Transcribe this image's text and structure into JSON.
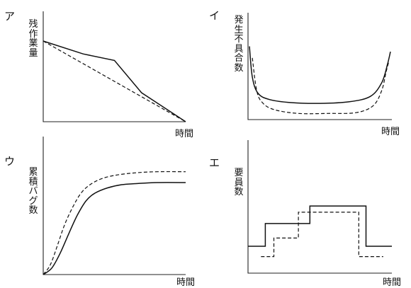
{
  "chart_data": [
    {
      "letter": "ア",
      "type": "line",
      "ylabel": "残作業量",
      "xlabel": "時間",
      "xlim": [
        0,
        10
      ],
      "ylim": [
        0,
        10
      ],
      "grid": false,
      "series": [
        {
          "style": "solid",
          "x": [
            0,
            2.8,
            5,
            6.9,
            10
          ],
          "y": [
            10,
            8.4,
            7.6,
            3.6,
            0
          ]
        },
        {
          "style": "dashed",
          "x": [
            0,
            10
          ],
          "y": [
            10,
            0
          ]
        }
      ]
    },
    {
      "letter": "イ",
      "type": "line",
      "ylabel": "発生不具合数",
      "xlabel": "時間",
      "xlim": [
        0,
        10
      ],
      "ylim": [
        0,
        10
      ],
      "grid": false,
      "series": [
        {
          "style": "solid",
          "x": [
            0.1,
            0.3,
            0.7,
            1.5,
            3,
            5,
            7,
            8.5,
            9.3,
            9.7,
            9.9
          ],
          "y": [
            9.5,
            5.5,
            3.4,
            2.6,
            2.2,
            2.1,
            2.3,
            3.0,
            4.8,
            7.2,
            8.8
          ]
        },
        {
          "style": "dashed",
          "x": [
            0.3,
            0.6,
            1,
            1.8,
            3.5,
            5.5,
            7.5,
            8.7,
            9.3,
            9.6,
            9.8
          ],
          "y": [
            8.0,
            3.8,
            2.2,
            1.3,
            0.8,
            0.8,
            0.9,
            1.8,
            3.8,
            6.2,
            7.6
          ]
        }
      ]
    },
    {
      "letter": "ウ",
      "type": "line",
      "ylabel": "累積バグ数",
      "xlabel": "時間",
      "xlim": [
        0,
        10
      ],
      "ylim": [
        0,
        10
      ],
      "grid": false,
      "series": [
        {
          "style": "solid",
          "x": [
            0,
            0.6,
            1.2,
            1.8,
            2.4,
            3.0,
            3.6,
            4.5,
            5.5,
            6.5,
            8,
            10
          ],
          "y": [
            0,
            0.6,
            2.0,
            3.8,
            5.5,
            6.8,
            7.5,
            8.0,
            8.3,
            8.4,
            8.5,
            8.5
          ]
        },
        {
          "style": "dashed",
          "x": [
            0,
            0.5,
            1.0,
            1.5,
            2.1,
            2.7,
            3.4,
            4.2,
            5.2,
            6.5,
            8,
            10
          ],
          "y": [
            0,
            0.9,
            2.7,
            4.6,
            6.3,
            7.6,
            8.4,
            8.9,
            9.2,
            9.4,
            9.5,
            9.5
          ]
        }
      ]
    },
    {
      "letter": "エ",
      "type": "line",
      "ylabel": "要員数",
      "xlabel": "時間",
      "xlim": [
        0,
        10
      ],
      "ylim": [
        0,
        10
      ],
      "grid": false,
      "series": [
        {
          "style": "solid",
          "x": [
            0,
            1.2,
            1.2,
            4.3,
            4.3,
            8.2,
            8.2,
            10
          ],
          "y": [
            2.6,
            2.6,
            4.8,
            4.8,
            6.5,
            6.5,
            2.6,
            2.6
          ]
        },
        {
          "style": "dashed",
          "x": [
            0.9,
            1.8,
            1.8,
            3.5,
            3.5,
            7.7,
            7.7,
            9.4
          ],
          "y": [
            1.6,
            1.6,
            3.4,
            3.4,
            5.9,
            5.9,
            1.6,
            1.6
          ]
        }
      ]
    }
  ]
}
